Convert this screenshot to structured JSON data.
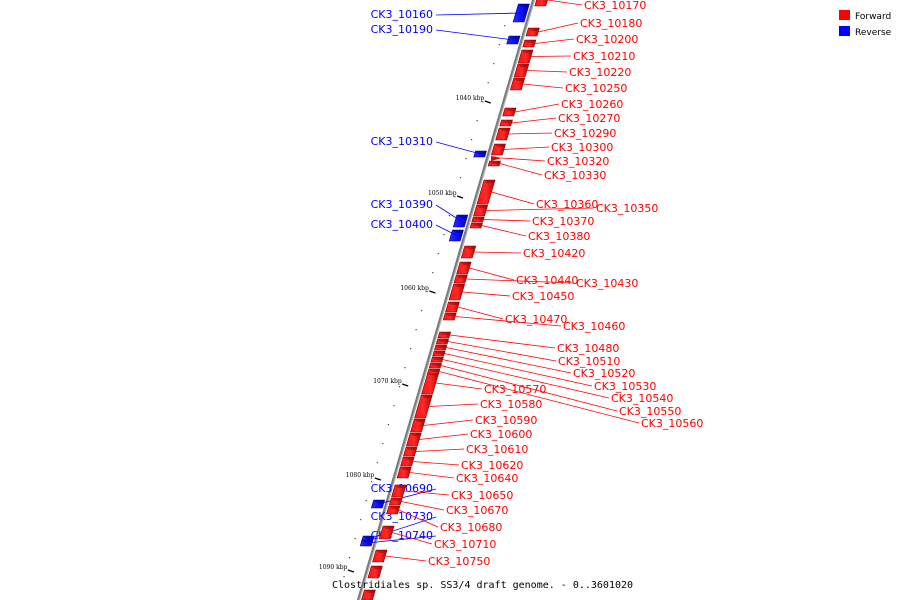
{
  "caption": "Clostridiales sp. SS3/4 draft genome. - 0..3601020",
  "legend": [
    {
      "label": "Forward",
      "color": "#ff0000"
    },
    {
      "label": "Reverse",
      "color": "#0000ff"
    }
  ],
  "ticks": [
    "1040 kbp",
    "1050 kbp",
    "1060 kbp",
    "1070 kbp",
    "1080 kbp",
    "1090 kbp"
  ],
  "reverse_genes": [
    "CK3_10160",
    "CK3_10190",
    "CK3_10310",
    "CK3_10390",
    "CK3_10400",
    "CK3_10690",
    "CK3_10730",
    "CK3_10740"
  ],
  "forward_genes": [
    "CK3_10170",
    "CK3_10180",
    "CK3_10200",
    "CK3_10210",
    "CK3_10220",
    "CK3_10250",
    "CK3_10260",
    "CK3_10270",
    "CK3_10290",
    "CK3_10300",
    "CK3_10320",
    "CK3_10330",
    "CK3_10360",
    "CK3_10350",
    "CK3_10370",
    "CK3_10380",
    "CK3_10420",
    "CK3_10440",
    "CK3_10430",
    "CK3_10450",
    "CK3_10470",
    "CK3_10460",
    "CK3_10480",
    "CK3_10510",
    "CK3_10520",
    "CK3_10530",
    "CK3_10570",
    "CK3_10540",
    "CK3_10580",
    "CK3_10550",
    "CK3_10560",
    "CK3_10590",
    "CK3_10600",
    "CK3_10610",
    "CK3_10620",
    "CK3_10640",
    "CK3_10650",
    "CK3_10670",
    "CK3_10680",
    "CK3_10710",
    "CK3_10750"
  ]
}
